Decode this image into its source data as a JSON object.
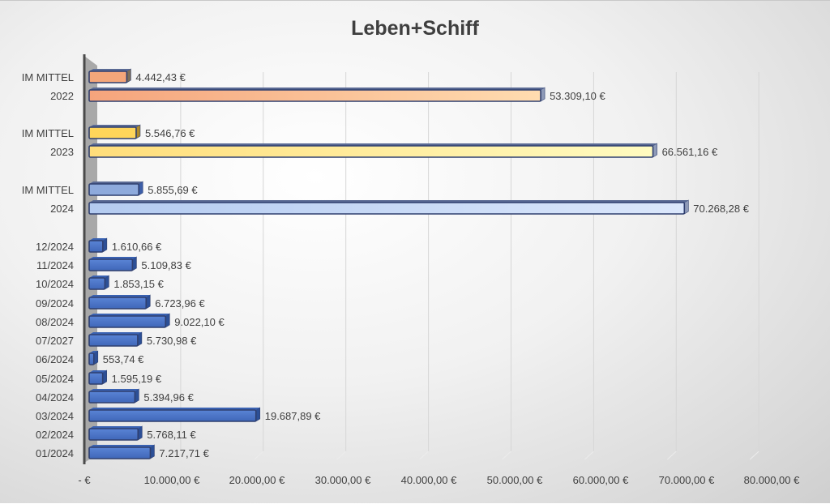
{
  "chart_data": {
    "type": "bar",
    "orientation": "horizontal",
    "title": "Leben+Schiff",
    "xlabel": "",
    "ylabel": "",
    "xlim": [
      0,
      80000
    ],
    "grid": true,
    "legend": "none",
    "x_tick_labels": [
      "-  €",
      "10.000,00 €",
      "20.000,00 €",
      "30.000,00 €",
      "40.000,00 €",
      "50.000,00 €",
      "60.000,00 €",
      "70.000,00 €",
      "80.000,00 €"
    ],
    "x_ticks": [
      0,
      10000,
      20000,
      30000,
      40000,
      50000,
      60000,
      70000,
      80000
    ],
    "categories": [
      "IM MITTEL",
      "2022",
      "IM MITTEL",
      "2023",
      "IM MITTEL",
      "2024",
      "12/2024",
      "11/2024",
      "10/2024",
      "09/2024",
      "08/2024",
      "07/2027",
      "06/2024",
      "05/2024",
      "04/2024",
      "03/2024",
      "02/2024",
      "01/2024"
    ],
    "values": [
      4442.43,
      53309.1,
      5546.76,
      66561.16,
      5855.69,
      70268.28,
      1610.66,
      5109.83,
      1853.15,
      6723.96,
      9022.1,
      5730.98,
      553.74,
      1595.19,
      5394.96,
      19687.89,
      5768.11,
      7217.71
    ],
    "value_labels": [
      "4.442,43 €",
      "53.309,10 €",
      "5.546,76 €",
      "66.561,16 €",
      "5.855,69 €",
      "70.268,28 €",
      "1.610,66 €",
      "5.109,83 €",
      "1.853,15 €",
      "6.723,96 €",
      "9.022,10 €",
      "5.730,98 €",
      "553,74 €",
      "1.595,19 €",
      "5.394,96 €",
      "19.687,89 €",
      "5.768,11 €",
      "7.217,71 €"
    ],
    "groups": [
      "avg2022",
      "total2022",
      "avg2023",
      "total2023",
      "avg2024",
      "total2024",
      "month",
      "month",
      "month",
      "month",
      "month",
      "month",
      "month",
      "month",
      "month",
      "month",
      "month",
      "month"
    ],
    "colors": {
      "avg2022": "#f4a67a",
      "total2022": "#f8b48a",
      "avg2023": "#ffd55a",
      "total2023": "#ffe69a",
      "avg2024": "#8eaadc",
      "total2024": "#c4d6f4",
      "month": "#4a72c4",
      "outline": "#2f3f6f",
      "axis": "#4a4a4a",
      "gridline": "#d6d6d6"
    }
  }
}
